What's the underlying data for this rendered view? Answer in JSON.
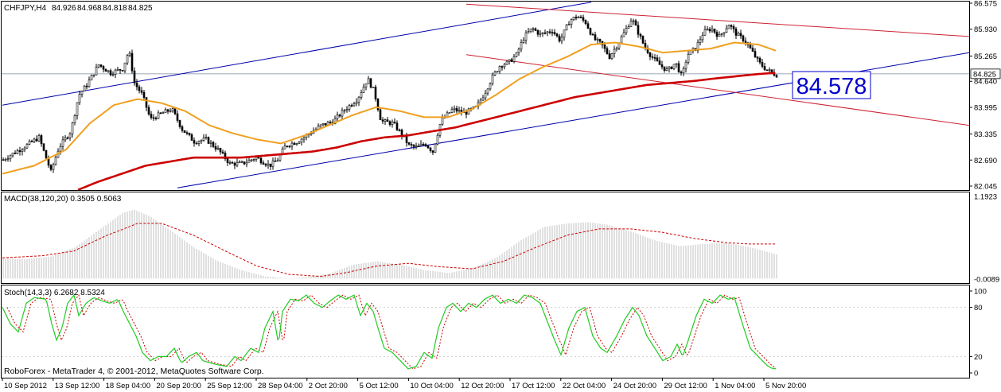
{
  "chart_data": {
    "type": "candlestick",
    "symbol_label": "CHFJPY,H4",
    "ohlc": {
      "open": "84.926",
      "high": "84.968",
      "low": "84.818",
      "close": "84.825"
    },
    "price_axis": {
      "ylim": [
        82.045,
        86.575
      ],
      "ticks": [
        "86.575",
        "85.930",
        "85.265",
        "84.640",
        "83.995",
        "83.335",
        "82.690",
        "82.045"
      ],
      "current_price": 84.825,
      "current_price_label": "84.825"
    },
    "annotation": {
      "value": 84.578,
      "label": "84.578"
    },
    "x_axis": {
      "tick_labels": [
        "10 Sep 2012",
        "13 Sep 12:00",
        "18 Sep 04:00",
        "20 Sep 20:00",
        "25 Sep 12:00",
        "28 Sep 04:00",
        "2 Oct 20:00",
        "5 Oct 12:00",
        "10 Oct 04:00",
        "12 Oct 20:00",
        "17 Oct 12:00",
        "22 Oct 04:00",
        "24 Oct 20:00",
        "29 Oct 12:00",
        "1 Nov 04:00",
        "5 Nov 20:00"
      ]
    },
    "anchors_price": [
      [
        0,
        82.7
      ],
      [
        25,
        83.0
      ],
      [
        45,
        83.25
      ],
      [
        60,
        82.4
      ],
      [
        70,
        83.0
      ],
      [
        85,
        83.4
      ],
      [
        95,
        84.3
      ],
      [
        105,
        84.55
      ],
      [
        120,
        85.05
      ],
      [
        135,
        84.85
      ],
      [
        150,
        84.95
      ],
      [
        158,
        85.4
      ],
      [
        165,
        84.6
      ],
      [
        175,
        84.3
      ],
      [
        185,
        83.7
      ],
      [
        200,
        83.85
      ],
      [
        212,
        83.95
      ],
      [
        225,
        83.45
      ],
      [
        240,
        83.15
      ],
      [
        255,
        83.2
      ],
      [
        270,
        82.95
      ],
      [
        285,
        82.6
      ],
      [
        300,
        82.6
      ],
      [
        318,
        82.75
      ],
      [
        335,
        82.55
      ],
      [
        345,
        82.7
      ],
      [
        355,
        83.05
      ],
      [
        370,
        83.15
      ],
      [
        385,
        83.35
      ],
      [
        400,
        83.55
      ],
      [
        415,
        83.65
      ],
      [
        430,
        83.95
      ],
      [
        445,
        84.2
      ],
      [
        458,
        84.7
      ],
      [
        466,
        84.4
      ],
      [
        475,
        83.65
      ],
      [
        490,
        83.6
      ],
      [
        500,
        83.35
      ],
      [
        510,
        83.05
      ],
      [
        520,
        83.0
      ],
      [
        530,
        83.1
      ],
      [
        540,
        82.9
      ],
      [
        550,
        83.65
      ],
      [
        565,
        83.95
      ],
      [
        580,
        83.85
      ],
      [
        595,
        84.0
      ],
      [
        605,
        84.35
      ],
      [
        615,
        84.75
      ],
      [
        625,
        85.05
      ],
      [
        635,
        85.1
      ],
      [
        645,
        85.3
      ],
      [
        655,
        85.75
      ],
      [
        665,
        85.95
      ],
      [
        675,
        85.8
      ],
      [
        690,
        85.9
      ],
      [
        700,
        85.65
      ],
      [
        712,
        86.15
      ],
      [
        722,
        86.25
      ],
      [
        732,
        86.1
      ],
      [
        742,
        85.7
      ],
      [
        752,
        85.55
      ],
      [
        762,
        85.25
      ],
      [
        772,
        85.55
      ],
      [
        782,
        85.9
      ],
      [
        790,
        86.2
      ],
      [
        798,
        85.85
      ],
      [
        806,
        85.5
      ],
      [
        815,
        85.25
      ],
      [
        825,
        85.05
      ],
      [
        835,
        84.9
      ],
      [
        845,
        85.1
      ],
      [
        853,
        84.75
      ],
      [
        860,
        85.3
      ],
      [
        870,
        85.45
      ],
      [
        880,
        85.85
      ],
      [
        890,
        85.95
      ],
      [
        900,
        85.75
      ],
      [
        912,
        86.05
      ],
      [
        922,
        85.8
      ],
      [
        932,
        85.65
      ],
      [
        942,
        85.35
      ],
      [
        950,
        85.1
      ],
      [
        958,
        84.95
      ],
      [
        966,
        84.85
      ],
      [
        972,
        84.8
      ]
    ],
    "ma_fast": [
      [
        0,
        82.35
      ],
      [
        40,
        82.55
      ],
      [
        80,
        82.95
      ],
      [
        110,
        83.6
      ],
      [
        140,
        84.05
      ],
      [
        170,
        84.2
      ],
      [
        200,
        84.1
      ],
      [
        230,
        83.9
      ],
      [
        260,
        83.55
      ],
      [
        290,
        83.35
      ],
      [
        320,
        83.2
      ],
      [
        350,
        83.1
      ],
      [
        380,
        83.3
      ],
      [
        410,
        83.55
      ],
      [
        440,
        83.8
      ],
      [
        470,
        84.0
      ],
      [
        500,
        83.9
      ],
      [
        530,
        83.75
      ],
      [
        560,
        83.75
      ],
      [
        590,
        83.95
      ],
      [
        620,
        84.3
      ],
      [
        650,
        84.7
      ],
      [
        680,
        85.0
      ],
      [
        710,
        85.25
      ],
      [
        740,
        85.55
      ],
      [
        770,
        85.6
      ],
      [
        800,
        85.5
      ],
      [
        830,
        85.35
      ],
      [
        860,
        85.4
      ],
      [
        890,
        85.45
      ],
      [
        920,
        85.6
      ],
      [
        950,
        85.55
      ],
      [
        972,
        85.4
      ]
    ],
    "ma_slow": [
      [
        95,
        81.95
      ],
      [
        120,
        82.15
      ],
      [
        150,
        82.35
      ],
      [
        180,
        82.55
      ],
      [
        210,
        82.65
      ],
      [
        240,
        82.75
      ],
      [
        270,
        82.75
      ],
      [
        300,
        82.75
      ],
      [
        330,
        82.8
      ],
      [
        360,
        82.85
      ],
      [
        390,
        82.9
      ],
      [
        420,
        83.0
      ],
      [
        450,
        83.15
      ],
      [
        480,
        83.25
      ],
      [
        510,
        83.3
      ],
      [
        540,
        83.4
      ],
      [
        570,
        83.5
      ],
      [
        600,
        83.65
      ],
      [
        630,
        83.8
      ],
      [
        660,
        83.95
      ],
      [
        690,
        84.1
      ],
      [
        720,
        84.25
      ],
      [
        750,
        84.35
      ],
      [
        780,
        84.45
      ],
      [
        810,
        84.55
      ],
      [
        840,
        84.6
      ],
      [
        870,
        84.65
      ],
      [
        900,
        84.72
      ],
      [
        930,
        84.78
      ],
      [
        950,
        84.82
      ],
      [
        972,
        84.85
      ]
    ],
    "macd": {
      "label": "MACD(38,120,20) 0.3505 0.5063",
      "ticks": [
        "1.1923",
        "-0.0089"
      ],
      "ylim": [
        -0.0089,
        1.1923
      ],
      "histogram_anchors": [
        [
          0,
          0.3
        ],
        [
          30,
          0.28
        ],
        [
          60,
          0.32
        ],
        [
          90,
          0.45
        ],
        [
          120,
          0.7
        ],
        [
          150,
          0.95
        ],
        [
          165,
          1.0
        ],
        [
          185,
          0.9
        ],
        [
          210,
          0.7
        ],
        [
          240,
          0.45
        ],
        [
          270,
          0.25
        ],
        [
          300,
          0.12
        ],
        [
          330,
          0.03
        ],
        [
          360,
          0.0
        ],
        [
          380,
          0.02
        ],
        [
          410,
          0.07
        ],
        [
          440,
          0.2
        ],
        [
          470,
          0.25
        ],
        [
          500,
          0.2
        ],
        [
          530,
          0.12
        ],
        [
          560,
          0.08
        ],
        [
          590,
          0.15
        ],
        [
          620,
          0.3
        ],
        [
          650,
          0.55
        ],
        [
          680,
          0.75
        ],
        [
          710,
          0.8
        ],
        [
          735,
          0.82
        ],
        [
          760,
          0.78
        ],
        [
          790,
          0.68
        ],
        [
          820,
          0.55
        ],
        [
          850,
          0.47
        ],
        [
          880,
          0.5
        ],
        [
          910,
          0.52
        ],
        [
          940,
          0.45
        ],
        [
          972,
          0.35
        ]
      ],
      "signal_anchors": [
        [
          0,
          0.3
        ],
        [
          50,
          0.33
        ],
        [
          90,
          0.4
        ],
        [
          130,
          0.62
        ],
        [
          170,
          0.8
        ],
        [
          200,
          0.8
        ],
        [
          240,
          0.63
        ],
        [
          280,
          0.4
        ],
        [
          320,
          0.18
        ],
        [
          360,
          0.06
        ],
        [
          400,
          0.03
        ],
        [
          430,
          0.08
        ],
        [
          470,
          0.18
        ],
        [
          510,
          0.22
        ],
        [
          550,
          0.17
        ],
        [
          590,
          0.14
        ],
        [
          630,
          0.25
        ],
        [
          670,
          0.45
        ],
        [
          710,
          0.63
        ],
        [
          750,
          0.72
        ],
        [
          790,
          0.72
        ],
        [
          830,
          0.67
        ],
        [
          870,
          0.58
        ],
        [
          910,
          0.52
        ],
        [
          940,
          0.5
        ],
        [
          972,
          0.5
        ]
      ]
    },
    "stochastic": {
      "label": "Stoch(14,3,3) 6.2682 8.5324",
      "ticks": [
        "100",
        "80",
        "20",
        "0"
      ],
      "ylim": [
        0,
        100
      ],
      "main_anchors": [
        [
          0,
          80
        ],
        [
          10,
          60
        ],
        [
          20,
          50
        ],
        [
          30,
          85
        ],
        [
          40,
          92
        ],
        [
          55,
          90
        ],
        [
          62,
          60
        ],
        [
          68,
          40
        ],
        [
          75,
          55
        ],
        [
          82,
          85
        ],
        [
          90,
          95
        ],
        [
          96,
          70
        ],
        [
          105,
          85
        ],
        [
          115,
          92
        ],
        [
          125,
          88
        ],
        [
          135,
          85
        ],
        [
          145,
          90
        ],
        [
          152,
          75
        ],
        [
          160,
          60
        ],
        [
          168,
          45
        ],
        [
          176,
          25
        ],
        [
          186,
          15
        ],
        [
          196,
          20
        ],
        [
          206,
          20
        ],
        [
          216,
          30
        ],
        [
          225,
          12
        ],
        [
          234,
          20
        ],
        [
          244,
          25
        ],
        [
          252,
          15
        ],
        [
          262,
          12
        ],
        [
          270,
          10
        ],
        [
          282,
          8
        ],
        [
          292,
          20
        ],
        [
          300,
          15
        ],
        [
          312,
          30
        ],
        [
          322,
          25
        ],
        [
          330,
          55
        ],
        [
          340,
          75
        ],
        [
          347,
          35
        ],
        [
          352,
          75
        ],
        [
          362,
          90
        ],
        [
          372,
          88
        ],
        [
          382,
          95
        ],
        [
          392,
          85
        ],
        [
          402,
          80
        ],
        [
          412,
          88
        ],
        [
          422,
          95
        ],
        [
          432,
          90
        ],
        [
          442,
          95
        ],
        [
          450,
          70
        ],
        [
          458,
          85
        ],
        [
          466,
          75
        ],
        [
          472,
          55
        ],
        [
          480,
          30
        ],
        [
          490,
          25
        ],
        [
          500,
          15
        ],
        [
          510,
          5
        ],
        [
          520,
          8
        ],
        [
          530,
          25
        ],
        [
          540,
          18
        ],
        [
          548,
          55
        ],
        [
          558,
          80
        ],
        [
          566,
          85
        ],
        [
          576,
          75
        ],
        [
          586,
          85
        ],
        [
          596,
          80
        ],
        [
          606,
          90
        ],
        [
          616,
          95
        ],
        [
          626,
          85
        ],
        [
          636,
          90
        ],
        [
          646,
          85
        ],
        [
          656,
          95
        ],
        [
          666,
          92
        ],
        [
          676,
          85
        ],
        [
          684,
          65
        ],
        [
          694,
          40
        ],
        [
          702,
          22
        ],
        [
          712,
          55
        ],
        [
          722,
          75
        ],
        [
          732,
          80
        ],
        [
          742,
          45
        ],
        [
          752,
          30
        ],
        [
          760,
          25
        ],
        [
          772,
          45
        ],
        [
          782,
          65
        ],
        [
          792,
          80
        ],
        [
          800,
          70
        ],
        [
          810,
          45
        ],
        [
          820,
          30
        ],
        [
          830,
          15
        ],
        [
          840,
          20
        ],
        [
          848,
          35
        ],
        [
          855,
          20
        ],
        [
          862,
          40
        ],
        [
          872,
          70
        ],
        [
          882,
          90
        ],
        [
          892,
          85
        ],
        [
          902,
          95
        ],
        [
          912,
          90
        ],
        [
          920,
          92
        ],
        [
          930,
          60
        ],
        [
          940,
          30
        ],
        [
          950,
          20
        ],
        [
          960,
          10
        ],
        [
          966,
          6
        ],
        [
          972,
          5
        ]
      ],
      "signal_lag": 6
    },
    "copyright": "RoboForex - MetaTrader 4, © 2001-2012, MetaQuotes Software Corp.",
    "colors": {
      "background": "#ffffff",
      "candle": "#000000",
      "ma_fast": "#f0a020",
      "ma_slow": "#cc0000",
      "trend_blue": "#0000aa",
      "trend_red": "#cc2233",
      "macd_hist": "#c0c0c0",
      "macd_signal": "#cc0000",
      "stoch_main": "#22cc22",
      "stoch_signal": "#cc0000",
      "axis_text": "#000000",
      "annotation": "#0000cc"
    }
  }
}
